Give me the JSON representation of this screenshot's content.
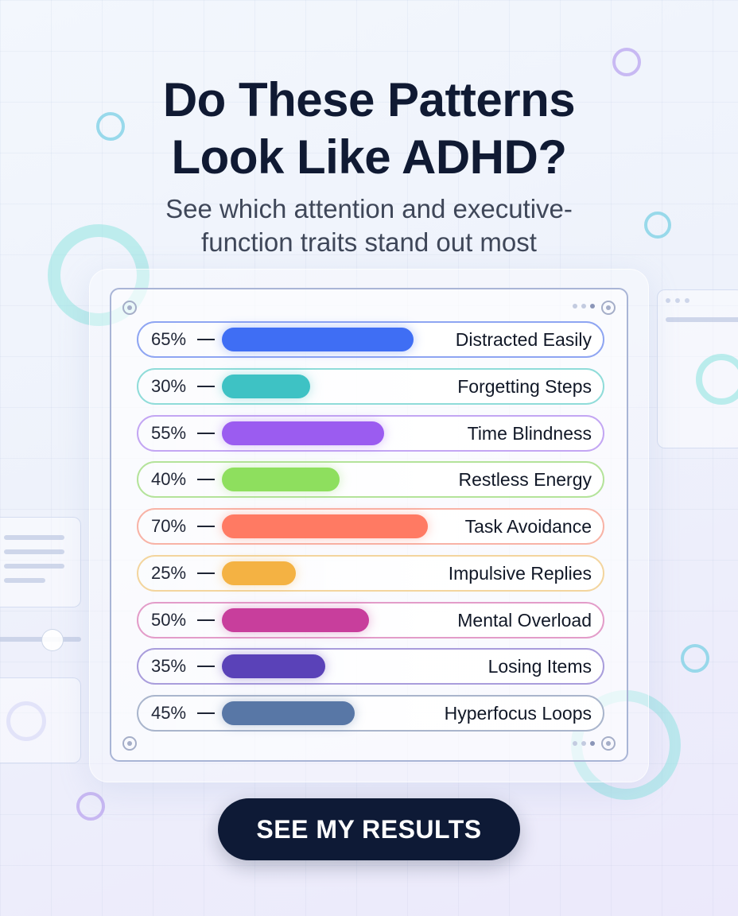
{
  "header": {
    "title_line1": "Do These Patterns",
    "title_line2": "Look Like ADHD?",
    "subtitle_line1": "See which attention and executive-",
    "subtitle_line2": "function traits stand out most"
  },
  "chart_data": {
    "type": "bar",
    "orientation": "horizontal",
    "categories": [
      "Distracted Easily",
      "Forgetting Steps",
      "Time Blindness",
      "Restless Energy",
      "Task Avoidance",
      "Impulsive Replies",
      "Mental Overload",
      "Losing Items",
      "Hyperfocus Loops"
    ],
    "values": [
      65,
      30,
      55,
      40,
      70,
      25,
      50,
      35,
      45
    ],
    "value_labels": [
      "65%",
      "30%",
      "55%",
      "40%",
      "70%",
      "25%",
      "50%",
      "35%",
      "45%"
    ],
    "colors": [
      "#3f6ef4",
      "#3ec2c4",
      "#9b5cf0",
      "#8edf5e",
      "#ff7a63",
      "#f4b243",
      "#c83e9c",
      "#5a42b8",
      "#5877a6"
    ],
    "border_colors": [
      "#8ea5f2",
      "#8fdcd9",
      "#c3a6f3",
      "#b4e39a",
      "#f8b3a6",
      "#f3d59e",
      "#e39cc9",
      "#a99ddc",
      "#a9b5cc"
    ],
    "xlim": [
      0,
      100
    ],
    "grid": false,
    "legend": "none"
  },
  "cta": {
    "label": "SEE MY RESULTS"
  }
}
